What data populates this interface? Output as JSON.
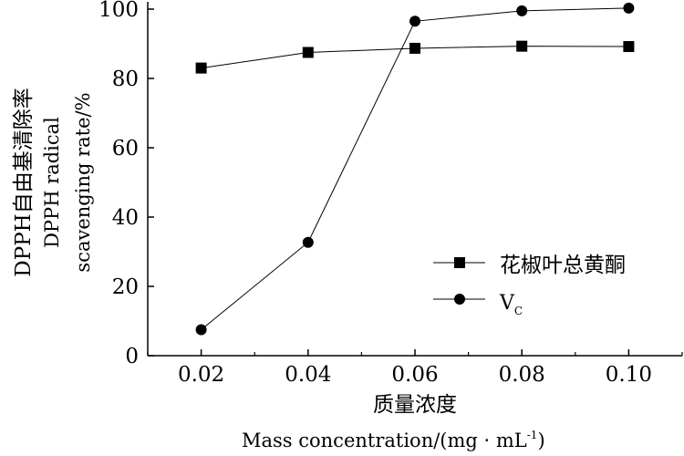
{
  "chart_data": {
    "type": "line",
    "x": [
      0.02,
      0.04,
      0.06,
      0.08,
      0.1
    ],
    "x_tick_labels": [
      "0.02",
      "0.04",
      "0.06",
      "0.08",
      "0.10"
    ],
    "y_ticks": [
      0,
      20,
      40,
      60,
      80,
      100
    ],
    "y_tick_labels": [
      "0",
      "20",
      "40",
      "60",
      "80",
      "100"
    ],
    "xlim": [
      0.01,
      0.11
    ],
    "ylim": [
      0,
      100
    ],
    "series": [
      {
        "name": "花椒叶总黄酮",
        "marker": "square",
        "values": [
          83,
          87.5,
          88.7,
          89.3,
          89.2
        ]
      },
      {
        "name": "VC",
        "marker": "circle",
        "values": [
          7.5,
          32.7,
          96.5,
          99.5,
          100.3
        ]
      }
    ],
    "legend": {
      "position": "lower-right",
      "labels": [
        "花椒叶总黄酮",
        "V",
        "C"
      ]
    },
    "xlabel_cn": "质量浓度",
    "xlabel_en": "Mass concentration/(mg · mL",
    "xlabel_en_sup": "-1",
    "xlabel_en_end": ")",
    "ylabel_cn": "DPPH自由基清除率",
    "ylabel_en_1": "DPPH radical",
    "ylabel_en_2": "scavenging rate/%",
    "grid": false
  }
}
